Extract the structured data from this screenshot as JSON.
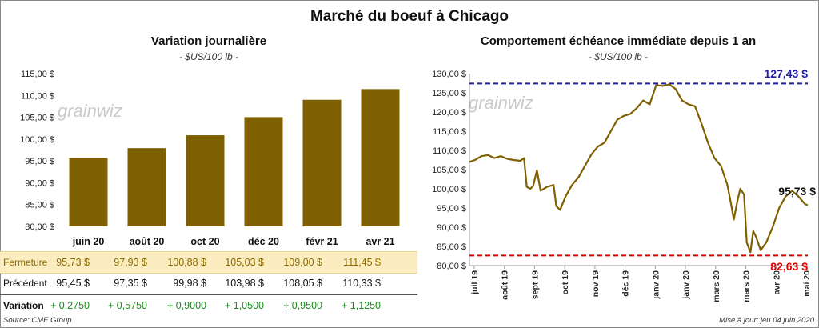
{
  "title": "Marché du boeuf à Chicago",
  "left": {
    "title": "Variation  journalière",
    "unit": "- $US/100 lb -",
    "watermark": "grainwiz"
  },
  "right": {
    "title": "Comportement  échéance immédiate depuis 1 an",
    "unit": "- $US/100 lb -",
    "watermark": "grainwiz",
    "max_label": "127,43 $",
    "min_label": "82,63 $",
    "last_label": "95,73 $"
  },
  "table": {
    "rows": [
      {
        "label": "Fermeture",
        "values": [
          "95,73  $",
          "97,93  $",
          "100,88  $",
          "105,03  $",
          "109,00  $",
          "111,45  $"
        ]
      },
      {
        "label": "Précédent",
        "values": [
          "95,45  $",
          "97,35  $",
          "99,98  $",
          "103,98  $",
          "108,05  $",
          "110,33  $"
        ]
      },
      {
        "label": "Variation",
        "values": [
          "+ 0,2750",
          "+ 0,5750",
          "+ 0,9000",
          "+ 1,0500",
          "+ 0,9500",
          "+ 1,1250"
        ]
      }
    ]
  },
  "footer": {
    "source": "Source: CME Group",
    "updated": "Mise à jour: jeu 04 juin 2020"
  },
  "colors": {
    "bar": "#7f6000",
    "line": "#7f6000",
    "max": "#1f1fa0",
    "min": "#e00000",
    "change": "#1f8a1f"
  },
  "chart_data": [
    {
      "type": "bar",
      "title": "Variation  journalière",
      "ylabel": "- $US/100 lb -",
      "categories": [
        "juin 20",
        "août 20",
        "oct 20",
        "déc 20",
        "févr 21",
        "avr 21"
      ],
      "values": [
        95.73,
        97.93,
        100.88,
        105.03,
        109.0,
        111.45
      ],
      "ylim": [
        80,
        115
      ],
      "yticks": [
        "80,00 $",
        "85,00 $",
        "90,00 $",
        "95,00 $",
        "100,00 $",
        "105,00 $",
        "110,00 $",
        "115,00 $"
      ],
      "grid": false
    },
    {
      "type": "line",
      "title": "Comportement  échéance immédiate depuis 1 an",
      "ylabel": "- $US/100 lb -",
      "ylim": [
        80,
        130
      ],
      "yticks": [
        "80,00 $",
        "85,00 $",
        "90,00 $",
        "95,00 $",
        "100,00 $",
        "105,00 $",
        "110,00 $",
        "115,00 $",
        "120,00 $",
        "125,00 $",
        "130,00 $"
      ],
      "xticks": [
        "juil 19",
        "août 19",
        "sept 19",
        "oct 19",
        "nov 19",
        "déc 19",
        "janv 20",
        "janv 20",
        "mars 20",
        "mars 20",
        "avr 20",
        "mai 20"
      ],
      "xlim": [
        "2019-06-04",
        "2020-06-04"
      ],
      "max_line": 127.43,
      "min_line": 82.63,
      "series": [
        {
          "x": [
            "2019-06-04",
            "2019-06-10",
            "2019-06-17",
            "2019-06-24",
            "2019-07-01",
            "2019-07-08",
            "2019-07-15",
            "2019-07-22",
            "2019-07-29",
            "2019-08-02",
            "2019-08-05",
            "2019-08-09",
            "2019-08-12",
            "2019-08-16",
            "2019-08-20",
            "2019-08-27",
            "2019-09-03",
            "2019-09-06",
            "2019-09-10",
            "2019-09-16",
            "2019-09-23",
            "2019-09-30",
            "2019-10-07",
            "2019-10-14",
            "2019-10-21",
            "2019-10-28",
            "2019-11-04",
            "2019-11-11",
            "2019-11-18",
            "2019-11-25",
            "2019-12-02",
            "2019-12-09",
            "2019-12-16",
            "2019-12-23",
            "2019-12-30",
            "2020-01-06",
            "2020-01-13",
            "2020-01-20",
            "2020-01-27",
            "2020-02-03",
            "2020-02-10",
            "2020-02-17",
            "2020-02-24",
            "2020-03-02",
            "2020-03-09",
            "2020-03-13",
            "2020-03-16",
            "2020-03-20",
            "2020-03-23",
            "2020-03-27",
            "2020-03-30",
            "2020-04-03",
            "2020-04-06",
            "2020-04-09",
            "2020-04-14",
            "2020-04-20",
            "2020-04-27",
            "2020-05-04",
            "2020-05-11",
            "2020-05-18",
            "2020-05-25",
            "2020-06-01",
            "2020-06-04"
          ],
          "y": [
            107,
            107.5,
            108.5,
            108.8,
            108,
            108.5,
            107.8,
            107.5,
            107.3,
            108,
            100.5,
            100,
            100.8,
            104.8,
            99.5,
            100.5,
            101,
            95.5,
            94.5,
            98,
            101,
            103,
            106,
            109,
            111,
            112,
            115,
            118,
            119,
            119.5,
            121,
            123,
            122,
            127,
            126.8,
            127.2,
            126,
            123,
            122,
            121.5,
            117,
            112,
            108,
            106,
            101,
            96,
            92,
            97,
            100,
            98.5,
            86,
            83.5,
            89,
            87.5,
            84,
            86,
            90,
            95,
            98,
            99.5,
            98,
            96,
            95.73
          ]
        }
      ],
      "annotations": [
        "127,43 $",
        "82,63 $",
        "95,73 $"
      ],
      "grid": false
    }
  ]
}
